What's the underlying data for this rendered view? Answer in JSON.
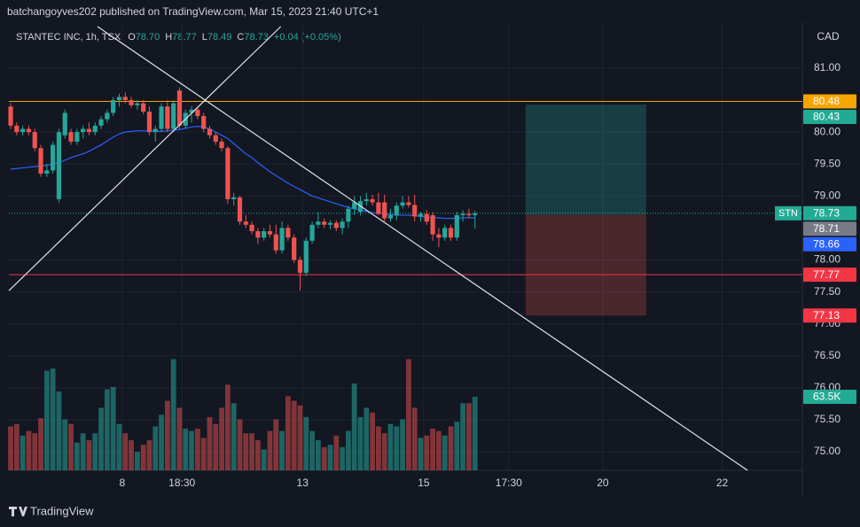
{
  "header": "batchangoyves202 published on TradingView.com, Mar 15, 2023 21:40 UTC+1",
  "legend": {
    "symbol": "STANTEC INC, 1h, TSX",
    "items": [
      {
        "label": "O",
        "value": "78.70"
      },
      {
        "label": "H",
        "value": "78.77"
      },
      {
        "label": "L",
        "value": "78.49"
      },
      {
        "label": "C",
        "value": "78.73"
      }
    ],
    "change": "+0.04 (+0.05%)"
  },
  "currency": "CAD",
  "brand": "TradingView",
  "chart_data": {
    "type": "candlestick",
    "candles": [
      [
        80.4,
        80.45,
        80.05,
        80.1
      ],
      [
        80.1,
        80.15,
        79.95,
        80.0
      ],
      [
        80.0,
        80.1,
        79.95,
        80.05
      ],
      [
        80.05,
        80.1,
        79.95,
        80.0
      ],
      [
        80.0,
        80.05,
        79.7,
        79.75
      ],
      [
        79.75,
        79.8,
        79.3,
        79.35
      ],
      [
        79.35,
        79.5,
        79.3,
        79.4
      ],
      [
        79.4,
        79.85,
        79.35,
        79.8
      ],
      [
        78.95,
        80.05,
        78.9,
        80.0
      ],
      [
        79.95,
        80.35,
        79.9,
        80.3
      ],
      [
        80.0,
        80.05,
        79.8,
        79.85
      ],
      [
        79.85,
        80.05,
        79.8,
        80.0
      ],
      [
        80.0,
        80.1,
        79.9,
        80.05
      ],
      [
        80.05,
        80.15,
        79.95,
        80.0
      ],
      [
        80.0,
        80.15,
        79.95,
        80.1
      ],
      [
        80.1,
        80.25,
        80.05,
        80.2
      ],
      [
        80.2,
        80.35,
        80.15,
        80.3
      ],
      [
        80.3,
        80.55,
        80.25,
        80.5
      ],
      [
        80.5,
        80.6,
        80.4,
        80.55
      ],
      [
        80.55,
        80.62,
        80.45,
        80.5
      ],
      [
        80.5,
        80.55,
        80.38,
        80.42
      ],
      [
        80.42,
        80.5,
        80.35,
        80.45
      ],
      [
        80.45,
        80.5,
        80.28,
        80.32
      ],
      [
        80.32,
        80.4,
        79.95,
        80.0
      ],
      [
        80.0,
        80.1,
        79.85,
        80.05
      ],
      [
        80.05,
        80.45,
        80.0,
        80.4
      ],
      [
        80.4,
        80.5,
        80.0,
        80.05
      ],
      [
        80.05,
        80.5,
        80.0,
        80.45
      ],
      [
        80.65,
        80.7,
        80.05,
        80.1
      ],
      [
        80.1,
        80.35,
        80.05,
        80.3
      ],
      [
        80.3,
        80.4,
        80.15,
        80.35
      ],
      [
        80.35,
        80.4,
        80.2,
        80.25
      ],
      [
        80.25,
        80.3,
        80.0,
        80.05
      ],
      [
        80.05,
        80.1,
        79.9,
        79.95
      ],
      [
        79.95,
        80.0,
        79.8,
        79.85
      ],
      [
        79.85,
        79.9,
        79.7,
        79.75
      ],
      [
        79.75,
        79.78,
        78.88,
        78.95
      ],
      [
        78.95,
        79.05,
        78.85,
        78.98
      ],
      [
        78.98,
        79.0,
        78.55,
        78.6
      ],
      [
        78.6,
        78.7,
        78.5,
        78.55
      ],
      [
        78.55,
        78.6,
        78.4,
        78.45
      ],
      [
        78.45,
        78.5,
        78.25,
        78.35
      ],
      [
        78.35,
        78.5,
        78.3,
        78.45
      ],
      [
        78.45,
        78.55,
        78.35,
        78.4
      ],
      [
        78.4,
        78.55,
        78.1,
        78.15
      ],
      [
        78.15,
        78.6,
        78.1,
        78.5
      ],
      [
        78.5,
        78.55,
        78.3,
        78.35
      ],
      [
        78.35,
        78.4,
        77.95,
        78.0
      ],
      [
        78.0,
        78.05,
        77.52,
        77.8
      ],
      [
        77.8,
        78.35,
        77.75,
        78.3
      ],
      [
        78.3,
        78.6,
        78.25,
        78.55
      ],
      [
        78.55,
        78.75,
        78.5,
        78.6
      ],
      [
        78.6,
        78.65,
        78.5,
        78.55
      ],
      [
        78.55,
        78.62,
        78.48,
        78.58
      ],
      [
        78.58,
        78.62,
        78.45,
        78.5
      ],
      [
        78.5,
        78.65,
        78.4,
        78.6
      ],
      [
        78.6,
        78.85,
        78.5,
        78.8
      ],
      [
        78.8,
        79.0,
        78.7,
        78.9
      ],
      [
        78.75,
        79.0,
        78.7,
        78.92
      ],
      [
        78.92,
        79.05,
        78.85,
        78.95
      ],
      [
        78.95,
        79.02,
        78.85,
        78.9
      ],
      [
        78.9,
        79.05,
        78.7,
        78.72
      ],
      [
        78.9,
        79.02,
        78.6,
        78.65
      ],
      [
        78.65,
        78.8,
        78.6,
        78.7
      ],
      [
        78.7,
        78.9,
        78.62,
        78.85
      ],
      [
        78.85,
        79.0,
        78.8,
        78.9
      ],
      [
        78.9,
        79.0,
        78.82,
        78.86
      ],
      [
        78.86,
        79.02,
        78.6,
        78.68
      ],
      [
        78.68,
        78.75,
        78.6,
        78.72
      ],
      [
        78.72,
        78.78,
        78.55,
        78.6
      ],
      [
        78.7,
        78.75,
        78.3,
        78.4
      ],
      [
        78.4,
        78.5,
        78.2,
        78.35
      ],
      [
        78.35,
        78.55,
        78.3,
        78.5
      ],
      [
        78.5,
        78.55,
        78.3,
        78.35
      ],
      [
        78.35,
        78.75,
        78.3,
        78.7
      ],
      [
        78.7,
        78.78,
        78.6,
        78.72
      ],
      [
        78.72,
        78.8,
        78.65,
        78.7
      ],
      [
        78.7,
        78.77,
        78.49,
        78.73
      ]
    ],
    "volume": [
      38000,
      40000,
      30000,
      34000,
      32000,
      45000,
      86000,
      88000,
      68000,
      44000,
      40000,
      24000,
      32000,
      26000,
      32000,
      54000,
      70000,
      72000,
      40000,
      32000,
      26000,
      16000,
      22000,
      26000,
      38000,
      48000,
      60000,
      96000,
      54000,
      36000,
      34000,
      36000,
      28000,
      46000,
      40000,
      54000,
      74000,
      58000,
      44000,
      32000,
      32000,
      26000,
      18000,
      34000,
      44000,
      34000,
      64000,
      60000,
      56000,
      46000,
      34000,
      26000,
      20000,
      22000,
      30000,
      20000,
      34000,
      75000,
      46000,
      54000,
      50000,
      38000,
      32000,
      40000,
      38000,
      44000,
      96000,
      54000,
      28000,
      30000,
      36000,
      34000,
      30000,
      38000,
      42000,
      58000,
      58000,
      63500
    ],
    "volume_label": "63.5K",
    "volume_lim": [
      0,
      100000
    ],
    "ma": [
      79.42,
      79.43,
      79.44,
      79.45,
      79.46,
      79.47,
      79.48,
      79.5,
      79.52,
      79.56,
      79.6,
      79.63,
      79.66,
      79.7,
      79.75,
      79.8,
      79.86,
      79.92,
      79.97,
      80.0,
      80.01,
      80.02,
      80.02,
      80.02,
      80.01,
      80.01,
      80.02,
      80.03,
      80.04,
      80.06,
      80.08,
      80.09,
      80.08,
      80.05,
      80.0,
      79.95,
      79.9,
      79.82,
      79.74,
      79.66,
      79.6,
      79.52,
      79.45,
      79.38,
      79.32,
      79.26,
      79.2,
      79.15,
      79.1,
      79.05,
      79.0,
      78.97,
      78.94,
      78.91,
      78.88,
      78.85,
      78.82,
      78.8,
      78.78,
      78.76,
      78.74,
      78.73,
      78.72,
      78.71,
      78.7,
      78.7,
      78.7,
      78.69,
      78.68,
      78.67,
      78.66,
      78.66,
      78.65,
      78.65,
      78.65,
      78.66,
      78.66,
      78.66
    ],
    "ma_color": "#2962ff",
    "up_color": "#26a69a",
    "down_color": "#ef5350",
    "trendlines": [
      [
        [
          -0.3,
          77.52
        ],
        [
          44.8,
          81.65
        ]
      ],
      [
        [
          14.4,
          81.65
        ],
        [
          122.2,
          74.71
        ]
      ]
    ],
    "position": {
      "from": 85.4,
      "to": 105.4,
      "target": 80.43,
      "entry": 78.71,
      "stop": 77.13
    },
    "levels": [
      {
        "value": 80.48,
        "color": "#f7a600",
        "line": true
      },
      {
        "value": 80.43,
        "color": "#22ab94"
      },
      {
        "value": 78.73,
        "color": "#22ab94",
        "dotted": true
      },
      {
        "value": 78.71,
        "color": "#787b86"
      },
      {
        "value": 78.66,
        "color": "#2962ff"
      },
      {
        "value": 77.77,
        "color": "#f23645",
        "line": true
      },
      {
        "value": 77.13,
        "color": "#f23645"
      }
    ],
    "symbol_badge": "STN",
    "xlim": [
      -0.3,
      131.3
    ],
    "ylim": [
      74.71,
      81.65
    ],
    "xticks": [
      {
        "value": 18.5,
        "label": "8"
      },
      {
        "value": 28.4,
        "label": "18:30"
      },
      {
        "value": 48.4,
        "label": "13"
      },
      {
        "value": 68.5,
        "label": "15"
      },
      {
        "value": 82.6,
        "label": "17:30"
      },
      {
        "value": 98.2,
        "label": "20"
      },
      {
        "value": 118,
        "label": "22"
      }
    ],
    "yticks": [
      {
        "value": 75,
        "label": "75.00"
      },
      {
        "value": 75.5,
        "label": "75.50"
      },
      {
        "value": 76,
        "label": "76.00"
      },
      {
        "value": 76.5,
        "label": "76.50"
      },
      {
        "value": 77,
        "label": "77.00"
      },
      {
        "value": 77.5,
        "label": "77.50"
      },
      {
        "value": 78,
        "label": "78.00"
      },
      {
        "value": 79,
        "label": "79.00"
      },
      {
        "value": 79.5,
        "label": "79.50"
      },
      {
        "value": 80,
        "label": "80.00"
      },
      {
        "value": 81,
        "label": "81.00"
      }
    ],
    "grid": true
  }
}
